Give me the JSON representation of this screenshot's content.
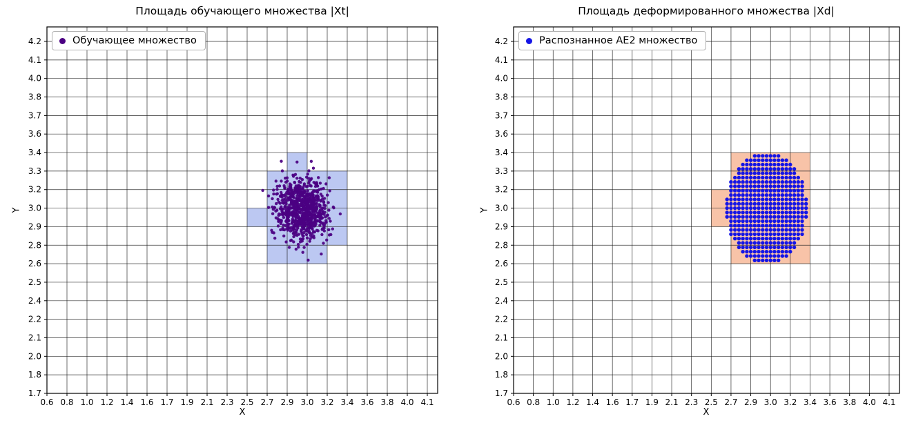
{
  "figure": {
    "background": "#ffffff",
    "grid_color": "#1a1a1a",
    "axis_color": "#000000"
  },
  "chart_data": [
    {
      "type": "scatter",
      "title": "Площадь обучающего множества |Xt|",
      "xlabel": "X",
      "ylabel": "Y",
      "grid": true,
      "legend_position": "upper left",
      "legend": {
        "entries": [
          {
            "label": "Обучающее множество",
            "marker": "circle",
            "color": "#4b0082"
          }
        ]
      },
      "x_tick_labels": [
        "0.6",
        "0.8",
        "1.0",
        "1.2",
        "1.4",
        "1.6",
        "1.7",
        "1.9",
        "2.1",
        "2.3",
        "2.5",
        "2.7",
        "2.9",
        "3.0",
        "3.2",
        "3.4",
        "3.6",
        "3.8",
        "4.0",
        "4.1"
      ],
      "y_tick_labels": [
        "1.7",
        "1.8",
        "2.0",
        "2.1",
        "2.2",
        "2.4",
        "2.5",
        "2.6",
        "2.8",
        "2.9",
        "3.0",
        "3.2",
        "3.3",
        "3.4",
        "3.6",
        "3.7",
        "3.8",
        "4.0",
        "4.1",
        "4.2"
      ],
      "highlight_cells": {
        "color": "#bcc8f2",
        "rects": [
          {
            "x": [
              2.9,
              3.0
            ],
            "y": [
              3.3,
              3.4
            ]
          },
          {
            "x": [
              2.7,
              3.4
            ],
            "y": [
              3.2,
              3.3
            ]
          },
          {
            "x": [
              2.7,
              3.4
            ],
            "y": [
              3.0,
              3.2
            ]
          },
          {
            "x": [
              2.5,
              2.7
            ],
            "y": [
              2.9,
              3.0
            ]
          },
          {
            "x": [
              2.7,
              3.4
            ],
            "y": [
              2.9,
              3.0
            ]
          },
          {
            "x": [
              2.7,
              3.4
            ],
            "y": [
              2.8,
              2.9
            ]
          },
          {
            "x": [
              2.7,
              3.2
            ],
            "y": [
              2.6,
              2.8
            ]
          }
        ]
      },
      "cluster": {
        "distribution": "gaussian",
        "center": [
          2.97,
          2.99
        ],
        "approx_x_range": [
          2.65,
          3.35
        ],
        "approx_y_range": [
          2.6,
          3.35
        ],
        "n_points": 800,
        "marker_color": "#4b0082",
        "marker_radius_px": 2.2,
        "seed": 20,
        "center_idx": [
          12.75,
          9.9
        ],
        "std_idx": [
          0.62,
          0.82
        ],
        "clip_sigma": 3.3
      }
    },
    {
      "type": "scatter",
      "title": "Площадь деформированного множества |Xd|",
      "xlabel": "X",
      "ylabel": "Y",
      "grid": true,
      "legend_position": "upper left",
      "legend": {
        "entries": [
          {
            "label": "Распознанное AE2 множество",
            "marker": "circle",
            "color": "#1414e6"
          }
        ]
      },
      "x_tick_labels": [
        "0.6",
        "0.8",
        "1.0",
        "1.2",
        "1.4",
        "1.6",
        "1.7",
        "1.9",
        "2.1",
        "2.3",
        "2.5",
        "2.7",
        "2.9",
        "3.0",
        "3.2",
        "3.4",
        "3.6",
        "3.8",
        "4.0",
        "4.1"
      ],
      "y_tick_labels": [
        "1.7",
        "1.8",
        "2.0",
        "2.1",
        "2.2",
        "2.4",
        "2.5",
        "2.6",
        "2.8",
        "2.9",
        "3.0",
        "3.2",
        "3.3",
        "3.4",
        "3.6",
        "3.7",
        "3.8",
        "4.0",
        "4.1",
        "4.2"
      ],
      "highlight_cells": {
        "color": "#f8c3a8",
        "rects": [
          {
            "x": [
              2.7,
              3.4
            ],
            "y": [
              2.6,
              3.4
            ]
          },
          {
            "x": [
              2.5,
              2.7
            ],
            "y": [
              2.9,
              3.2
            ]
          }
        ]
      },
      "dot_grid": {
        "shape": "ellipse",
        "center": [
          2.96,
          3.0
        ],
        "approx_x_range": [
          2.65,
          3.35
        ],
        "approx_y_range": [
          2.6,
          3.4
        ],
        "marker_color": "#1414e6",
        "marker_radius_px": 2.7,
        "center_idx": [
          12.8,
          10.0
        ],
        "rx_idx": 2.05,
        "ry_idx": 3.0,
        "step_idx": [
          0.2,
          0.235
        ]
      }
    }
  ]
}
